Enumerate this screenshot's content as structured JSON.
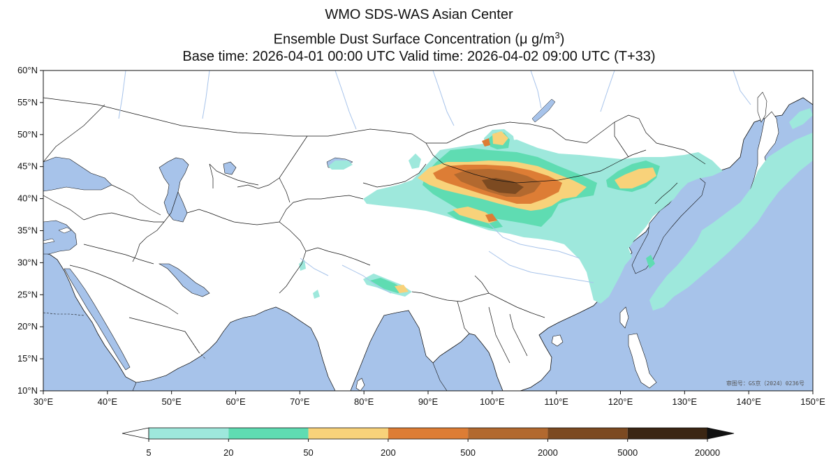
{
  "header": {
    "line1": "WMO SDS-WAS Asian Center",
    "line2_main": "Ensemble Dust Surface Concentration (",
    "line2_unit": "μ g/m",
    "line2_sup": "3",
    "line2_end": ")",
    "line3": "Base time: 2026-04-01 00:00 UTC Valid time: 2026-04-02 09:00 UTC (T+33)"
  },
  "axes": {
    "lat_labels": [
      "60°N",
      "55°N",
      "50°N",
      "45°N",
      "40°N",
      "35°N",
      "30°N",
      "25°N",
      "20°N",
      "15°N",
      "10°N"
    ],
    "lon_labels": [
      "30°E",
      "40°E",
      "50°E",
      "60°E",
      "70°E",
      "80°E",
      "90°E",
      "100°E",
      "110°E",
      "120°E",
      "130°E",
      "140°E",
      "150°E"
    ],
    "lat_range": [
      10,
      60
    ],
    "lon_range": [
      30,
      150
    ]
  },
  "approval_text": "审图号：GS京（2024）0236号",
  "colorbar": {
    "levels": [
      "5",
      "20",
      "50",
      "200",
      "500",
      "2000",
      "5000",
      "20000"
    ],
    "colors": [
      "#9ee8dc",
      "#5fdcb2",
      "#f8d27a",
      "#dd7d35",
      "#b2692f",
      "#7c4a21",
      "#3b2613"
    ],
    "under_color": "#ffffff",
    "over_color": "#111111"
  },
  "colors": {
    "ocean": "#a7c3ea",
    "land": "#ffffff",
    "border": "#111111",
    "river": "#a7c3ea"
  }
}
